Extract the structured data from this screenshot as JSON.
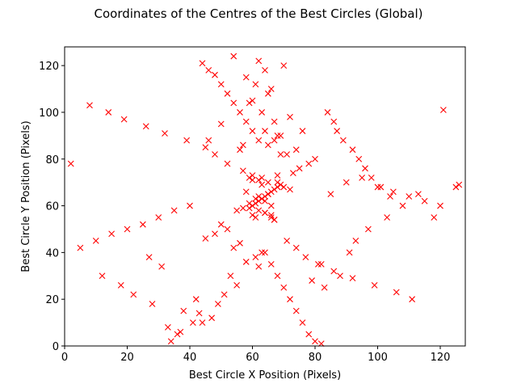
{
  "chart_data": {
    "type": "scatter",
    "title": "Coordinates of the Centres of the Best Circles (Global)",
    "xlabel": "Best Circle X Position (Pixels)",
    "ylabel": "Best Circle Y Position (Pixels)",
    "xlim": [
      0,
      128
    ],
    "ylim": [
      0,
      128
    ],
    "xticks": [
      "0",
      "20",
      "40",
      "60",
      "80",
      "100",
      "120"
    ],
    "yticks": [
      "0",
      "20",
      "40",
      "60",
      "80",
      "100",
      "120"
    ],
    "grid": false,
    "marker": "x",
    "color": "#ff0000",
    "points_x": [
      62,
      64,
      58,
      66,
      70,
      55,
      68,
      60,
      63,
      67,
      61,
      65,
      59,
      72,
      57,
      69,
      64,
      62,
      66,
      60,
      52,
      75,
      48,
      78,
      45,
      80,
      50,
      73,
      56,
      71,
      54,
      74,
      63,
      65,
      61,
      67,
      58,
      69,
      62,
      64,
      40,
      85,
      35,
      90,
      30,
      95,
      25,
      100,
      20,
      105,
      15,
      110,
      10,
      115,
      5,
      120,
      2,
      125,
      121,
      126,
      42,
      83,
      38,
      88,
      44,
      82,
      36,
      91,
      47,
      79,
      33,
      93,
      28,
      97,
      22,
      103,
      18,
      108,
      12,
      113,
      63,
      60,
      66,
      58,
      70,
      54,
      72,
      50,
      76,
      46,
      62,
      64,
      61,
      65,
      59,
      67,
      68,
      57,
      56,
      69,
      53,
      55,
      51,
      49,
      43,
      41,
      37,
      34,
      31,
      27,
      84,
      86,
      87,
      89,
      92,
      94,
      96,
      98,
      101,
      104,
      62,
      63,
      64,
      65,
      66,
      60,
      61,
      59,
      67,
      68,
      62,
      63,
      64,
      65,
      66,
      60,
      61,
      59,
      67,
      68,
      57,
      71,
      52,
      74,
      48,
      77,
      45,
      81,
      39,
      86,
      32,
      92,
      26,
      99,
      19,
      106,
      14,
      111,
      8,
      118,
      64,
      62,
      66,
      60,
      68,
      58,
      70,
      56,
      72,
      54,
      74,
      52,
      76,
      50,
      78,
      48,
      80,
      46,
      82,
      44
    ],
    "points_y": [
      64,
      62,
      66,
      60,
      68,
      58,
      70,
      56,
      72,
      54,
      63,
      65,
      61,
      67,
      59,
      69,
      57,
      71,
      55,
      73,
      50,
      76,
      48,
      78,
      46,
      80,
      52,
      74,
      44,
      82,
      42,
      84,
      40,
      86,
      38,
      88,
      36,
      90,
      34,
      92,
      60,
      65,
      58,
      70,
      55,
      72,
      52,
      68,
      50,
      66,
      48,
      64,
      45,
      62,
      42,
      60,
      78,
      68,
      101,
      69,
      20,
      25,
      15,
      30,
      10,
      35,
      5,
      40,
      12,
      28,
      8,
      45,
      18,
      50,
      22,
      55,
      26,
      60,
      30,
      65,
      100,
      105,
      110,
      115,
      120,
      124,
      98,
      95,
      92,
      88,
      122,
      118,
      112,
      108,
      104,
      96,
      90,
      86,
      84,
      82,
      30,
      26,
      22,
      18,
      14,
      10,
      6,
      2,
      34,
      38,
      100,
      96,
      92,
      88,
      84,
      80,
      76,
      72,
      68,
      64,
      62,
      63,
      64,
      65,
      66,
      60,
      61,
      59,
      67,
      68,
      58,
      69,
      57,
      70,
      56,
      71,
      55,
      72,
      54,
      73,
      75,
      45,
      78,
      42,
      82,
      38,
      85,
      35,
      88,
      32,
      91,
      29,
      94,
      26,
      97,
      23,
      100,
      20,
      103,
      55,
      40,
      88,
      35,
      92,
      30,
      96,
      25,
      100,
      20,
      104,
      15,
      108,
      10,
      112,
      5,
      116,
      2,
      118,
      1,
      121
    ]
  }
}
